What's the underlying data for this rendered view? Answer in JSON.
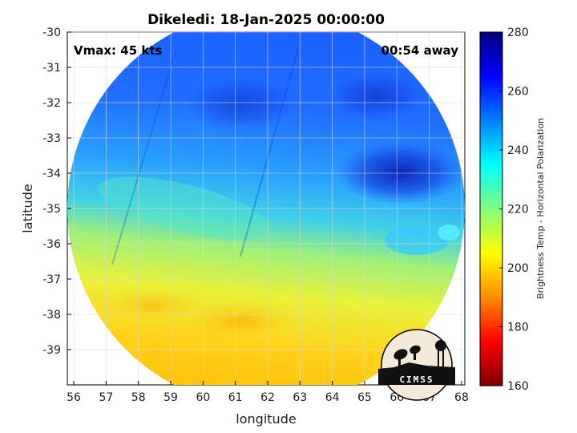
{
  "title": "Dikeledi: 18-Jan-2025 00:00:00",
  "vmax_text": "Vmax: 45 kts",
  "time_away": "00:54 away",
  "logo_text": "CIMSS",
  "colors": {
    "colormap": [
      "#7f0000",
      "#ff0000",
      "#ff8c00",
      "#ffff00",
      "#7fff7f",
      "#00ffff",
      "#0080ff",
      "#0000ff",
      "#00007f"
    ],
    "background": "#ffffff",
    "grid": "#d9d9d9"
  },
  "chart_data": {
    "type": "heatmap",
    "title": "Dikeledi: 18-Jan-2025 00:00:00",
    "xlabel": "longitude",
    "ylabel": "latitude",
    "xlim": [
      55.8,
      68.1
    ],
    "ylim": [
      -40,
      -30
    ],
    "xticks": [
      "56",
      "57",
      "58",
      "59",
      "60",
      "61",
      "62",
      "63",
      "64",
      "65",
      "66",
      "67",
      "68"
    ],
    "yticks": [
      "-30",
      "-31",
      "-32",
      "-33",
      "-34",
      "-35",
      "-36",
      "-37",
      "-38",
      "-39"
    ],
    "grid": true,
    "colorbar": {
      "label": "Brightness Temp - Horizontal Polarization",
      "range": [
        160,
        280
      ],
      "ticks": [
        "160",
        "180",
        "200",
        "220",
        "240",
        "260",
        "280"
      ]
    },
    "swath_center": {
      "lon": 61.9,
      "lat": -35.0
    },
    "field_description_values": {
      "north_region_tb": 255,
      "northeast_cold_core_tb": 270,
      "central_band_tb": 235,
      "south_band_tb": 205,
      "southeast_warm_tb": 195
    }
  }
}
